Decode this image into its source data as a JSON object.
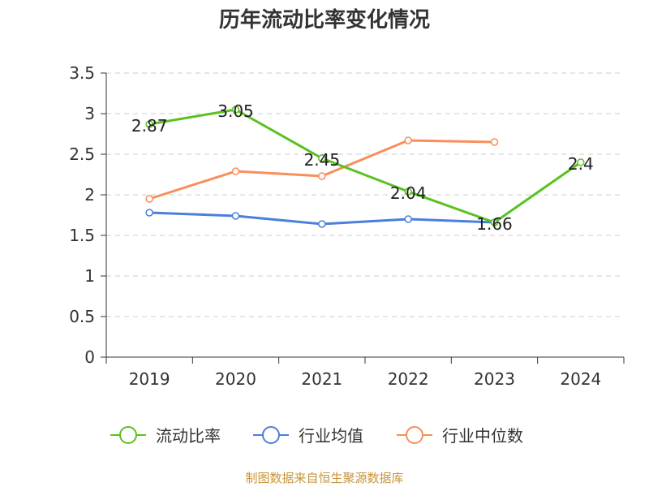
{
  "chart_data": {
    "type": "line",
    "title": "历年流动比率变化情况",
    "categories": [
      "2019",
      "2020",
      "2021",
      "2022",
      "2023",
      "2024"
    ],
    "ylim": [
      0,
      3.5
    ],
    "yticks": [
      "0",
      "0.5",
      "1",
      "1.5",
      "2",
      "2.5",
      "3",
      "3.5"
    ],
    "grid": "horizontal dashed",
    "legend_position": "bottom",
    "series": [
      {
        "name": "流动比率",
        "color": "#5ac21f",
        "values": [
          2.87,
          3.05,
          2.45,
          2.04,
          1.66,
          2.4
        ],
        "data_labels": [
          "2.87",
          "3.05",
          "2.45",
          "2.04",
          "1.66",
          "2.4"
        ]
      },
      {
        "name": "行业均值",
        "color": "#4a7fdc",
        "values": [
          1.78,
          1.74,
          1.64,
          1.7,
          1.66,
          null
        ]
      },
      {
        "name": "行业中位数",
        "color": "#f98e5b",
        "values": [
          1.95,
          2.29,
          2.23,
          2.67,
          2.65,
          null
        ]
      }
    ]
  },
  "source_text": "制图数据来自恒生聚源数据库"
}
